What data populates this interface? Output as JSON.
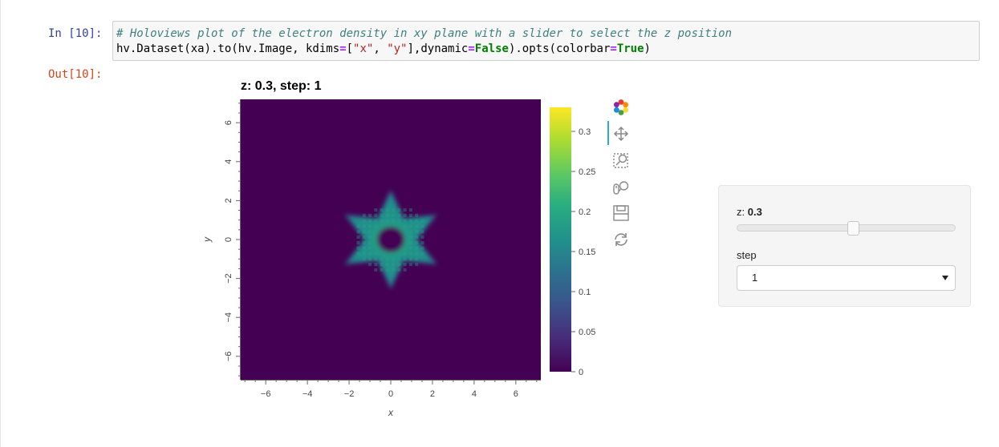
{
  "notebook": {
    "in_prompt": "In [10]:",
    "out_prompt": "Out[10]:",
    "code": {
      "line1_comment": "# Holoviews plot of the electron density in xy plane with a slider to select the z position",
      "line2": {
        "p1": "hv.Dataset(xa).to(hv.Image, kdims",
        "eq1": "=",
        "p2": "[",
        "s1": "\"x\"",
        "p3": ", ",
        "s2": "\"y\"",
        "p4": "],dynamic",
        "eq2": "=",
        "kw1": "False",
        "p5": ").opts(colorbar",
        "eq3": "=",
        "kw2": "True",
        "p6": ")"
      }
    }
  },
  "chart_data": {
    "type": "heatmap",
    "title": "z: 0.3, step: 1",
    "xlabel": "x",
    "ylabel": "y",
    "xlim": [
      -7.2,
      7.2
    ],
    "ylim": [
      -7.2,
      7.2
    ],
    "xticks": [
      -6,
      -4,
      -2,
      0,
      2,
      4,
      6
    ],
    "yticks": [
      -6,
      -4,
      -2,
      0,
      2,
      4,
      6
    ],
    "colormap": "viridis",
    "colorbar": {
      "min": 0,
      "max": 0.33,
      "ticks": [
        {
          "value": 0,
          "label": "0"
        },
        {
          "value": 0.05,
          "label": "0.05"
        },
        {
          "value": 0.1,
          "label": "0.1"
        },
        {
          "value": 0.15,
          "label": "0.15"
        },
        {
          "value": 0.2,
          "label": "0.2"
        },
        {
          "value": 0.25,
          "label": "0.25"
        },
        {
          "value": 0.3,
          "label": "0.3"
        }
      ]
    },
    "feature": {
      "shape": "hexagram",
      "center": [
        0,
        0
      ],
      "outer_radius": 2.4,
      "inner_radius": 1.2,
      "band_max_value": 0.2,
      "grid_spacing": 0.28
    }
  },
  "toolbar": {
    "tools": [
      "bokeh-logo-icon",
      "pan-icon",
      "box-zoom-icon",
      "wheel-zoom-icon",
      "save-icon",
      "reset-icon"
    ],
    "active": "pan-icon",
    "accent": "#26aae1"
  },
  "widgets": {
    "slider": {
      "label": "z:",
      "value": "0.3",
      "fraction": 0.53
    },
    "select": {
      "label": "step",
      "value": "1"
    }
  }
}
